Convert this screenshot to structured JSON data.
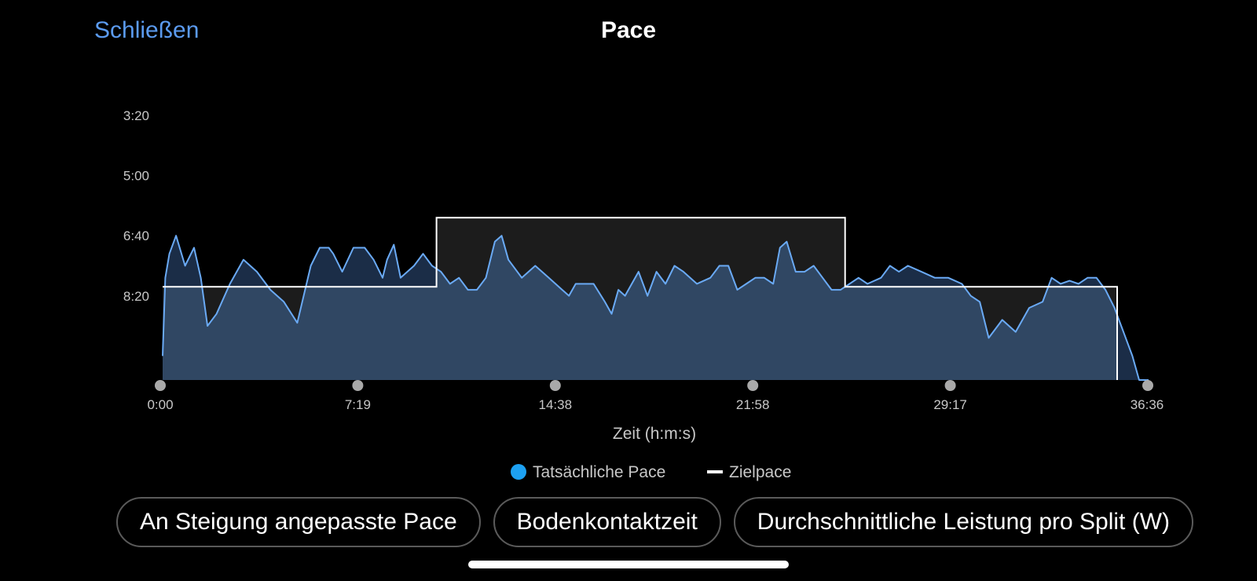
{
  "header": {
    "close_label": "Schließen",
    "title": "Pace"
  },
  "colors": {
    "background": "#000000",
    "actual_line": "#6aaaf5",
    "actual_fill": "#304763",
    "above_target_fill": "#1b2d47",
    "below_target_fill": "#1c1c1c",
    "target_line": "#ffffff",
    "legend_dot": "#1da1f2"
  },
  "chart_data": {
    "type": "line",
    "xlabel": "Zeit (h:m:s)",
    "x_ticks": [
      "0:00",
      "7:19",
      "14:38",
      "21:58",
      "29:17",
      "36:36"
    ],
    "y_ticks": [
      "3:20",
      "5:00",
      "6:40",
      "8:20"
    ],
    "y_unit": "min/km",
    "y_inverted": true,
    "xlim_seconds": [
      0,
      2196
    ],
    "ylim_seconds_per_km": [
      200,
      640
    ],
    "grid": false,
    "legend": [
      {
        "label": "Tatsächliche Pace",
        "symbol": "dot"
      },
      {
        "label": "Zielpace",
        "symbol": "dash"
      }
    ],
    "series": [
      {
        "name": "Tatsächliche Pace",
        "x": [
          0,
          6,
          15,
          30,
          50,
          70,
          85,
          100,
          120,
          150,
          180,
          210,
          240,
          270,
          300,
          330,
          350,
          370,
          380,
          400,
          425,
          450,
          470,
          490,
          500,
          515,
          530,
          560,
          580,
          600,
          620,
          640,
          660,
          680,
          700,
          720,
          740,
          755,
          770,
          800,
          830,
          860,
          890,
          905,
          920,
          940,
          960,
          985,
          1000,
          1015,
          1030,
          1060,
          1080,
          1100,
          1120,
          1140,
          1160,
          1190,
          1220,
          1240,
          1260,
          1280,
          1300,
          1320,
          1340,
          1360,
          1375,
          1390,
          1410,
          1430,
          1450,
          1470,
          1490,
          1510,
          1530,
          1550,
          1570,
          1600,
          1620,
          1640,
          1660,
          1690,
          1720,
          1750,
          1780,
          1800,
          1820,
          1840,
          1870,
          1900,
          1930,
          1960,
          1980,
          2000,
          2020,
          2040,
          2060,
          2080,
          2100,
          2120,
          2140,
          2160,
          2175,
          2185,
          2196
        ],
        "y": [
          600,
          470,
          430,
          400,
          450,
          420,
          470,
          550,
          530,
          480,
          440,
          460,
          490,
          510,
          545,
          450,
          420,
          420,
          430,
          460,
          420,
          420,
          440,
          470,
          440,
          415,
          470,
          450,
          430,
          450,
          460,
          480,
          470,
          490,
          490,
          470,
          410,
          400,
          440,
          470,
          450,
          470,
          490,
          500,
          480,
          480,
          480,
          510,
          530,
          490,
          500,
          460,
          500,
          460,
          480,
          450,
          460,
          480,
          470,
          450,
          450,
          490,
          480,
          470,
          470,
          480,
          420,
          410,
          460,
          460,
          450,
          470,
          490,
          490,
          480,
          470,
          480,
          470,
          450,
          460,
          450,
          460,
          470,
          470,
          480,
          500,
          510,
          570,
          540,
          560,
          520,
          510,
          470,
          480,
          475,
          480,
          470,
          470,
          490,
          520,
          560,
          600,
          640,
          640,
          640
        ]
      },
      {
        "name": "Zielpace",
        "x": [
          0,
          610,
          610,
          1520,
          1520,
          2126,
          2126
        ],
        "y": [
          485,
          485,
          370,
          370,
          485,
          485,
          640
        ]
      }
    ]
  },
  "tabs": [
    {
      "label": "An Steigung angepasste Pace"
    },
    {
      "label": "Bodenkontaktzeit"
    },
    {
      "label": "Durchschnittliche Leistung pro Split (W)"
    }
  ]
}
